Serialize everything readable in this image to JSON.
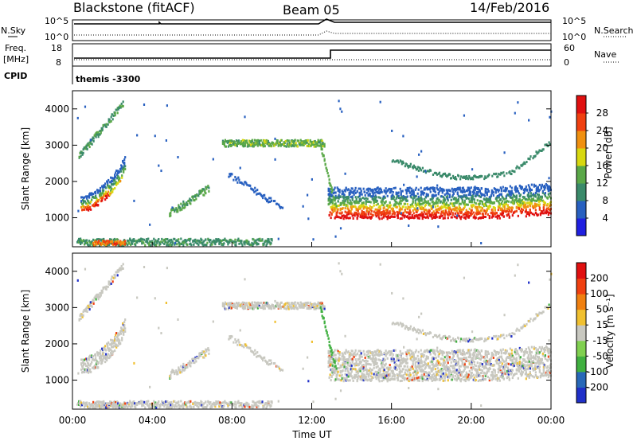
{
  "header": {
    "station": "Blackstone (fitACF)",
    "beam": "Beam 05",
    "date": "14/Feb/2016"
  },
  "noise_panel": {
    "left_label": "N.Sky",
    "right_label": "N.Search",
    "left_ticks": [
      "10^5",
      "10^0"
    ],
    "right_ticks": [
      "10^5",
      "10^0"
    ]
  },
  "freq_panel": {
    "left_label_1": "Freq.",
    "left_label_2": "[MHz]",
    "cpid_label": "CPID",
    "right_label": "Nave",
    "left_ticks": [
      "18",
      "8"
    ],
    "right_ticks": [
      "60",
      "0"
    ],
    "cpid_text": "themis -3300"
  },
  "chart_data": [
    {
      "type": "heatmap",
      "name": "power",
      "ylabel": "Slant Range [km]",
      "yticks": [
        1000,
        2000,
        3000,
        4000
      ],
      "ylim": [
        200,
        4500
      ],
      "colorbar_label": "Power [dB]",
      "colorbar_ticks": [
        4,
        8,
        12,
        16,
        20,
        24,
        28
      ],
      "colorbar_colors": [
        "#2020e0",
        "#2860c0",
        "#3a8a6a",
        "#5aa848",
        "#d8d810",
        "#f09010",
        "#f04010",
        "#e01010"
      ],
      "colorbar_range": [
        0,
        32
      ]
    },
    {
      "type": "heatmap",
      "name": "velocity",
      "ylabel": "Slant Range [km]",
      "xlabel": "Time UT",
      "yticks": [
        1000,
        2000,
        3000,
        4000
      ],
      "ylim": [
        200,
        4500
      ],
      "xticks": [
        "00:00",
        "04:00",
        "08:00",
        "12:00",
        "16:00",
        "20:00",
        "00:00"
      ],
      "colorbar_label": "Velocity [m s⁻¹]",
      "colorbar_ticks": [
        "200",
        "100",
        "50",
        "15",
        "-15",
        "-50",
        "-100",
        "-200"
      ],
      "colorbar_colors": [
        "#2030c8",
        "#2868b8",
        "#40b040",
        "#80d050",
        "#c8c8c0",
        "#f0c030",
        "#f08010",
        "#f04010",
        "#e01010"
      ]
    }
  ],
  "colors": {
    "gray": "#c8c8c0",
    "axis": "#000000"
  }
}
